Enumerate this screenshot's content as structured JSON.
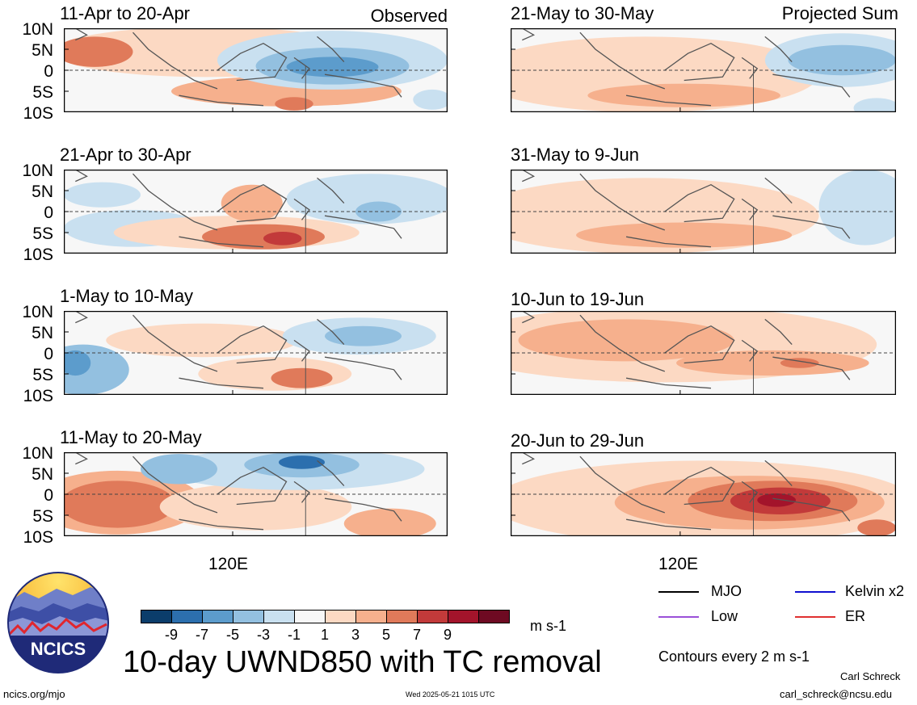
{
  "colors": {
    "neg9": "#0b3d6b",
    "neg7": "#2c6fae",
    "neg5": "#5c9ccc",
    "neg3": "#93c0e0",
    "neg1": "#c9e0f0",
    "zero": "#f7f7f7",
    "pos1": "#fcd9c3",
    "pos3": "#f6b08d",
    "pos5": "#e07a5a",
    "pos7": "#c23a3a",
    "pos9": "#a3142b",
    "pos11": "#6e0a22",
    "coast": "#555555"
  },
  "chart_data": {
    "type": "heatmap",
    "variable": "10-day UWND850 with TC removal",
    "units": "m s-1",
    "y_ticks": [
      "10N",
      "5N",
      "0",
      "5S",
      "10S"
    ],
    "x_tick": "120E",
    "colorbar": {
      "levels": [
        -9,
        -7,
        -5,
        -3,
        -1,
        1,
        3,
        5,
        7,
        9
      ],
      "labels": [
        "-9",
        "-7",
        "-5",
        "-3",
        "-1",
        "1",
        "3",
        "5",
        "7",
        "9"
      ]
    },
    "columns": [
      {
        "label": "Observed",
        "panels": [
          "11-Apr to 20-Apr",
          "21-Apr to 30-Apr",
          "1-May to 10-May",
          "11-May to 20-May"
        ]
      },
      {
        "label": "Projected Sum",
        "panels": [
          "21-May to 30-May",
          "31-May to 9-Jun",
          "10-Jun to 19-Jun",
          "20-Jun to 29-Jun"
        ]
      }
    ]
  },
  "panels": [
    {
      "id": "obs1",
      "title": "11-Apr to 20-Apr",
      "tag": "Observed"
    },
    {
      "id": "obs2",
      "title": "21-Apr to 30-Apr",
      "tag": ""
    },
    {
      "id": "obs3",
      "title": "1-May to 10-May",
      "tag": ""
    },
    {
      "id": "obs4",
      "title": "11-May to 20-May",
      "tag": ""
    },
    {
      "id": "proj1",
      "title": "21-May to 30-May",
      "tag": "Projected Sum"
    },
    {
      "id": "proj2",
      "title": "31-May to 9-Jun",
      "tag": ""
    },
    {
      "id": "proj3",
      "title": "10-Jun to 19-Jun",
      "tag": ""
    },
    {
      "id": "proj4",
      "title": "20-Jun to 29-Jun",
      "tag": ""
    }
  ],
  "legend": {
    "items": [
      {
        "label": "MJO",
        "color": "#000000"
      },
      {
        "label": "Kelvin x2",
        "color": "#1010d0"
      },
      {
        "label": "Low",
        "color": "#9a50d8"
      },
      {
        "label": "ER",
        "color": "#e03030"
      }
    ],
    "contours_note": "Contours every 2 m s-1"
  },
  "footer": {
    "main_title": "10-day UWND850 with TC removal",
    "units": "m s-1",
    "logo_text": "NCICS",
    "url": "ncics.org/mjo",
    "timestamp": "Wed 2025-05-21 1015 UTC",
    "author": "Carl Schreck",
    "email": "carl_schreck@ncsu.edu"
  }
}
